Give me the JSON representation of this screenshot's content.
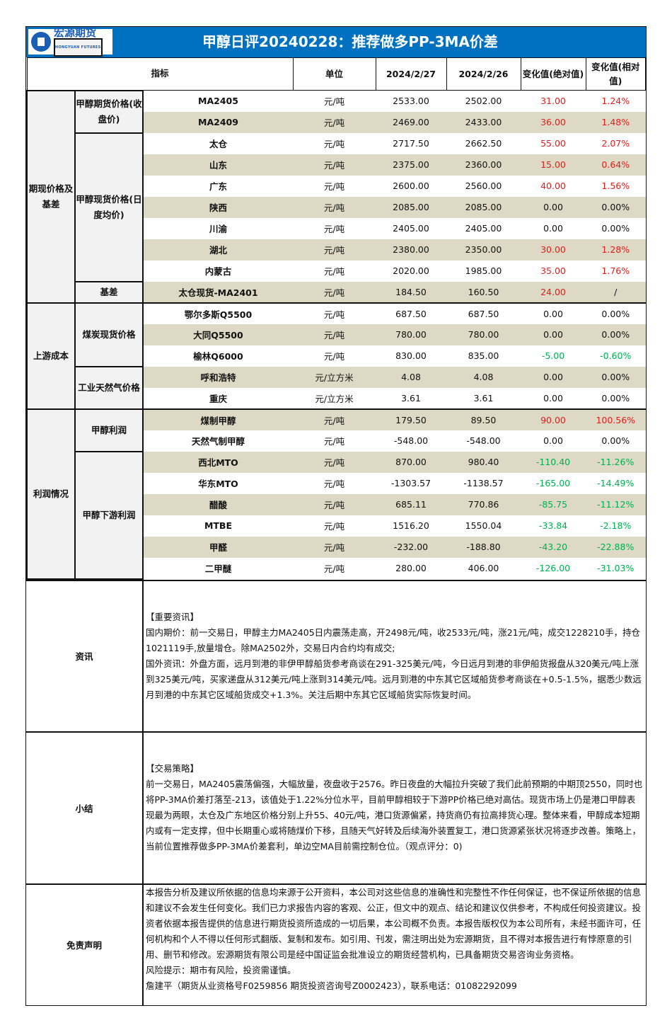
{
  "header": {
    "logo_name": "宏源期货",
    "logo_sub": "HONGYUAN FUTURES",
    "title": "甲醇日评20240228：推荐做多PP-3MA价差"
  },
  "columns": {
    "indicator": "指标",
    "unit": "单位",
    "date1": "2024/2/27",
    "date2": "2024/2/26",
    "abs_change": "变化值(绝对值)",
    "rel_change": "变化值(相对值)"
  },
  "groups": [
    {
      "label": "期现价格及基差",
      "subs": [
        {
          "label": "甲醇期货价格(收盘价)",
          "rows": [
            [
              "MA2405",
              "元/吨",
              "2533.00",
              "2502.00",
              "31.00",
              "1.24%"
            ],
            [
              "MA2409",
              "元/吨",
              "2469.00",
              "2433.00",
              "36.00",
              "1.48%"
            ]
          ]
        },
        {
          "label": "甲醇现货价格(日度均价)",
          "rows": [
            [
              "太仓",
              "元/吨",
              "2717.50",
              "2662.50",
              "55.00",
              "2.07%"
            ],
            [
              "山东",
              "元/吨",
              "2375.00",
              "2360.00",
              "15.00",
              "0.64%"
            ],
            [
              "广东",
              "元/吨",
              "2600.00",
              "2560.00",
              "40.00",
              "1.56%"
            ],
            [
              "陕西",
              "元/吨",
              "2085.00",
              "2085.00",
              "0.00",
              "0.00%"
            ],
            [
              "川渝",
              "元/吨",
              "2405.00",
              "2405.00",
              "0.00",
              "0.00%"
            ],
            [
              "湖北",
              "元/吨",
              "2380.00",
              "2350.00",
              "30.00",
              "1.28%"
            ],
            [
              "内蒙古",
              "元/吨",
              "2020.00",
              "1985.00",
              "35.00",
              "1.76%"
            ]
          ]
        },
        {
          "label": "基差",
          "rows": [
            [
              "太仓现货-MA2401",
              "元/吨",
              "184.50",
              "160.50",
              "24.00",
              "/"
            ]
          ]
        }
      ]
    },
    {
      "label": "上游成本",
      "subs": [
        {
          "label": "煤炭现货价格",
          "rows": [
            [
              "鄂尔多斯Q5500",
              "元/吨",
              "687.50",
              "687.50",
              "0.00",
              "0.00%"
            ],
            [
              "大同Q5500",
              "元/吨",
              "780.00",
              "780.00",
              "0.00",
              "0.00%"
            ],
            [
              "榆林Q6000",
              "元/吨",
              "830.00",
              "835.00",
              "-5.00",
              "-0.60%"
            ]
          ]
        },
        {
          "label": "工业天然气价格",
          "rows": [
            [
              "呼和浩特",
              "元/立方米",
              "4.08",
              "4.08",
              "0.00",
              "0.00%"
            ],
            [
              "重庆",
              "元/立方米",
              "3.61",
              "3.61",
              "0.00",
              "0.00%"
            ]
          ]
        }
      ]
    },
    {
      "label": "利润情况",
      "subs": [
        {
          "label": "甲醇利润",
          "rows": [
            [
              "煤制甲醇",
              "元/吨",
              "179.50",
              "89.50",
              "90.00",
              "100.56%"
            ],
            [
              "天然气制甲醇",
              "元/吨",
              "-548.00",
              "-548.00",
              "0.00",
              "0.00%"
            ]
          ]
        },
        {
          "label": "甲醇下游利润",
          "rows": [
            [
              "西北MTO",
              "元/吨",
              "870.00",
              "980.40",
              "-110.40",
              "-11.26%"
            ],
            [
              "华东MTO",
              "元/吨",
              "-1303.57",
              "-1138.57",
              "-165.00",
              "-14.49%"
            ],
            [
              "醋酸",
              "元/吨",
              "685.11",
              "770.86",
              "-85.75",
              "-11.12%"
            ],
            [
              "MTBE",
              "元/吨",
              "1516.20",
              "1550.04",
              "-33.84",
              "-2.18%"
            ],
            [
              "甲醛",
              "元/吨",
              "-232.00",
              "-188.80",
              "-43.20",
              "-22.88%"
            ],
            [
              "二甲醚",
              "元/吨",
              "280.00",
              "406.00",
              "-126.00",
              "-31.03%"
            ]
          ]
        }
      ]
    }
  ],
  "colors": {
    "header_blue": "#0070c0",
    "stripe": "#ddd9c4",
    "up": "#e02020",
    "down": "#00b050"
  },
  "sections": {
    "news": {
      "label": "资讯",
      "text": "【重要资讯】\n国内期价：前一交易日，甲醇主力MA2405日内震荡走高，开2498元/吨，收2533元/吨，涨21元/吨，成交1228210手，持仓1021119手,放量增仓。除MA2502外，交易日内合约均有成交;\n国外资讯：外盘方面，远月到港的非伊甲醇船货参考商谈在291-325美元/吨，今日远月到港的非伊船货报盘从320美元/吨上涨到325美元/吨，买家递盘从312美元/吨上涨到314美元/吨。远月到港的中东其它区域船货参考商谈在+0.5-1.5%，据悉少数远月到港的中东其它区域船货成交+1.3%。关注后期中东其它区域船货实际恢复时间。"
    },
    "summary": {
      "label": "小结",
      "text": "【交易策略】\n前一交易日，MA2405震荡偏强，大幅放量，夜盘收于2576。昨日夜盘的大幅拉升突破了我们此前预期的中期顶2550，同时也将PP-3MA价差打落至-213，该值处于1.22%分位水平，目前甲醇相较于下游PP价格已绝对高估。现货市场上仍是港口甲醇表现最为两眼，太仓及广东地区价格分别上升55、40元/吨，港口货源偏紧，持货商仍有拉高排货心理。整体来看，甲醇成本短期内或有一定支撑，但中长期重心或将随煤价下移，且随天气好转及后续海外装置复工，港口货源紧张状况将逐步改善。策略上，当前位置推荐做多PP-3MA价差套利，单边空MA目前需控制仓位。（观点评分：0)"
    },
    "disclaimer": {
      "label": "免责声明",
      "text": "本报告分析及建议所依据的信息均来源于公开资料，本公司对这些信息的准确性和完整性不作任何保证，也不保证所依据的信息和建议不会发生任何变化。我们已力求报告内容的客观、公正，但文中的观点、结论和建议仅供参考，不构成任何投资建议。投资者依据本报告提供的信息进行期货投资所造成的一切后果，本公司概不负责。本报告版权仅为本公司所有，未经书面许可，任何机构和个人不得以任何形式翻版、复制和发布。如引用、刊发，需注明出处为宏源期货，且不得对本报告进行有悖原意的引用、删节和修改。宏源期货有限公司是经中国证监会批准设立的期货经营机构，已具备期货交易咨询业务资格。\n风险提示：期市有风险，投资需谨慎。\n詹建平（期货从业资格号F0259856 期货投资咨询号Z0002423），联系电话：01082292099"
    }
  }
}
